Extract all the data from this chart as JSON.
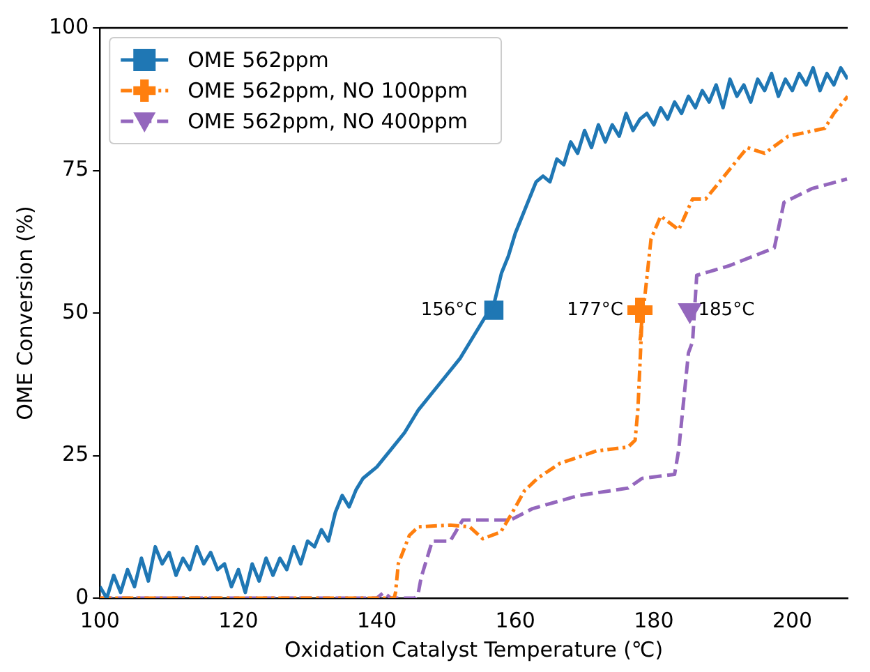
{
  "chart_data": {
    "type": "line",
    "xlabel": "Oxidation Catalyst Temperature (℃)",
    "ylabel": "OME Conversion (%)",
    "xlim": [
      100,
      208
    ],
    "xticks": [
      100,
      120,
      140,
      160,
      180,
      200
    ],
    "ylim": [
      0,
      100
    ],
    "yticks": [
      0,
      25,
      50,
      75,
      100
    ],
    "grid": false,
    "legend": "top left",
    "series": [
      {
        "name": "OME 562ppm",
        "color": "#1f77b4",
        "line_style": "solid",
        "x": [
          100,
          101,
          102,
          103,
          104,
          105,
          106,
          107,
          108,
          109,
          110,
          111,
          112,
          113,
          114,
          115,
          116,
          117,
          118,
          119,
          120,
          121,
          122,
          123,
          124,
          125,
          126,
          127,
          128,
          129,
          130,
          131,
          132,
          133,
          134,
          135,
          136,
          137,
          138,
          139,
          140,
          142,
          144,
          146,
          148,
          150,
          152,
          154,
          156,
          157,
          158,
          159,
          160,
          161,
          162,
          163,
          164,
          165,
          166,
          167,
          168,
          169,
          170,
          171,
          172,
          173,
          174,
          175,
          176,
          177,
          178,
          179,
          180,
          181,
          182,
          183,
          184,
          185,
          186,
          187,
          188,
          189,
          190,
          191,
          192,
          193,
          194,
          195,
          196,
          197,
          198,
          199,
          200,
          201,
          202,
          203,
          204,
          205,
          206,
          207,
          208
        ],
        "values": [
          2,
          0,
          4,
          1,
          5,
          2,
          7,
          3,
          9,
          6,
          8,
          4,
          7,
          5,
          9,
          6,
          8,
          5,
          6,
          2,
          5,
          1,
          6,
          3,
          7,
          4,
          7,
          5,
          9,
          6,
          10,
          9,
          12,
          10,
          15,
          18,
          16,
          19,
          21,
          22,
          23,
          26,
          29,
          33,
          36,
          39,
          42,
          46,
          50,
          52,
          57,
          60,
          64,
          67,
          70,
          73,
          74,
          73,
          77,
          76,
          80,
          78,
          82,
          79,
          83,
          80,
          83,
          81,
          85,
          82,
          84,
          85,
          83,
          86,
          84,
          87,
          85,
          88,
          86,
          89,
          87,
          90,
          86,
          91,
          88,
          90,
          87,
          91,
          89,
          92,
          88,
          91,
          89,
          92,
          90,
          93,
          89,
          92,
          90,
          93,
          91
        ]
      },
      {
        "name": "OME 562ppm, NO 100ppm",
        "color": "#ff7f0e",
        "line_style": "dashdot",
        "x": [
          100,
          142.5,
          142.7,
          143.1,
          144.7,
          146,
          150.6,
          153.4,
          155.3,
          157.9,
          159.9,
          161.3,
          163.2,
          166.4,
          171.7,
          176.3,
          177.3,
          177.7,
          178,
          178.3,
          178,
          179.6,
          181,
          183.6,
          185.6,
          187.5,
          193.5,
          196,
          199.4,
          204.7,
          206,
          208
        ],
        "values": [
          0,
          0,
          1,
          6,
          11,
          12.5,
          12.8,
          12.5,
          10.4,
          11.6,
          15.7,
          18.8,
          21,
          23.6,
          25.8,
          26.5,
          27.7,
          33,
          41,
          49,
          45,
          63,
          67,
          64.6,
          70,
          70,
          79,
          78,
          81,
          82.4,
          85,
          88
        ]
      },
      {
        "name": "OME 562ppm, NO 400ppm",
        "color": "#9467bd",
        "line_style": "dashed",
        "x": [
          100,
          140,
          141,
          142,
          145.5,
          146,
          146.4,
          148,
          150.6,
          152.4,
          159.3,
          162.5,
          169.2,
          176.3,
          178.3,
          183,
          183.6,
          185,
          185.6,
          186.2,
          190.9,
          197.4,
          198.8,
          202.8,
          207.9
        ],
        "values": [
          0,
          0,
          1,
          0,
          0,
          1,
          3.6,
          10,
          10,
          13.7,
          13.7,
          15.7,
          18,
          19.3,
          21,
          21.7,
          26,
          43,
          45,
          56.6,
          58.3,
          61.4,
          69.4,
          71.8,
          73.5
        ]
      },
      {
        "type": "scatter",
        "color": "#1f77b4",
        "marker": "square",
        "x": [
          156.9
        ],
        "values": [
          50.5
        ]
      },
      {
        "type": "scatter",
        "color": "#ff7f0e",
        "marker": "cross",
        "x": [
          178
        ],
        "values": [
          50.5
        ]
      },
      {
        "type": "scatter",
        "color": "#9467bd",
        "marker": "triangle",
        "x": [
          185.2
        ],
        "values": [
          50.5
        ]
      }
    ],
    "annotations": [
      {
        "text": "156°C",
        "x": 156.9,
        "y": 50.5
      },
      {
        "text": "177°C",
        "x": 178,
        "y": 50.5
      },
      {
        "text": "185°C",
        "x": 185.2,
        "y": 50.5
      }
    ]
  }
}
